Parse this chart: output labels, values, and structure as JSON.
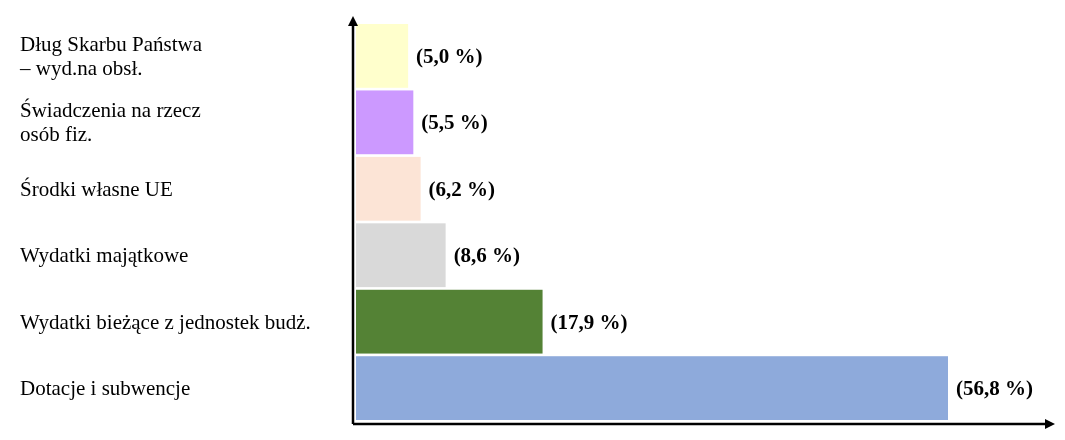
{
  "chart_data": {
    "type": "bar",
    "orientation": "horizontal",
    "categories": [
      "Dług Skarbu Państwa\n– wyd.na obsł.",
      "Świadczenia na rzecz\nosób fiz.",
      "Środki własne UE",
      "Wydatki majątkowe",
      "Wydatki bieżące z jednostek budż.",
      "Dotacje i subwencje"
    ],
    "values": [
      5.0,
      5.5,
      6.2,
      8.6,
      17.9,
      56.8
    ],
    "value_labels": [
      "(5,0 %)",
      "(5,5 %)",
      "(6,2 %)",
      "(8,6 %)",
      "(17,9 %)",
      "(56,8 %)"
    ],
    "colors": [
      "#ffffcc",
      "#cc99ff",
      "#fce4d6",
      "#d9d9d9",
      "#548235",
      "#8eaadb"
    ]
  }
}
